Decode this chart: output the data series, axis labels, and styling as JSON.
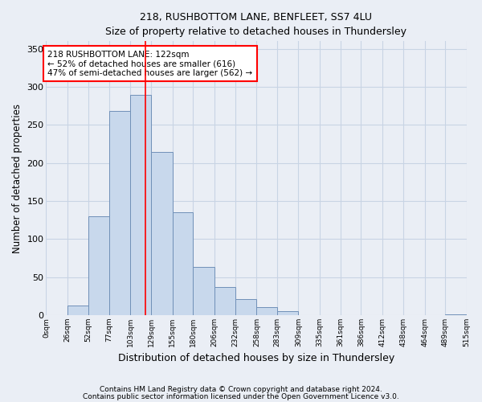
{
  "title1": "218, RUSHBOTTOM LANE, BENFLEET, SS7 4LU",
  "title2": "Size of property relative to detached houses in Thundersley",
  "xlabel": "Distribution of detached houses by size in Thundersley",
  "ylabel": "Number of detached properties",
  "footnote1": "Contains HM Land Registry data © Crown copyright and database right 2024.",
  "footnote2": "Contains public sector information licensed under the Open Government Licence v3.0.",
  "annotation_line1": "218 RUSHBOTTOM LANE: 122sqm",
  "annotation_line2": "← 52% of detached houses are smaller (616)",
  "annotation_line3": "47% of semi-detached houses are larger (562) →",
  "bar_edges": [
    0,
    26,
    52,
    77,
    103,
    129,
    155,
    180,
    206,
    232,
    258,
    283,
    309,
    335,
    361,
    386,
    412,
    438,
    464,
    489,
    515
  ],
  "bar_heights": [
    0,
    13,
    130,
    268,
    290,
    215,
    135,
    63,
    37,
    21,
    11,
    5,
    0,
    0,
    0,
    0,
    0,
    0,
    0,
    1
  ],
  "bar_color": "#c8d8ec",
  "bar_edge_color": "#7090b8",
  "grid_color": "#c8d4e4",
  "property_line_x": 122,
  "property_line_color": "red",
  "annotation_box_color": "white",
  "annotation_box_edge": "red",
  "ylim": [
    0,
    360
  ],
  "yticks": [
    0,
    50,
    100,
    150,
    200,
    250,
    300,
    350
  ],
  "background_color": "#eaeef5"
}
